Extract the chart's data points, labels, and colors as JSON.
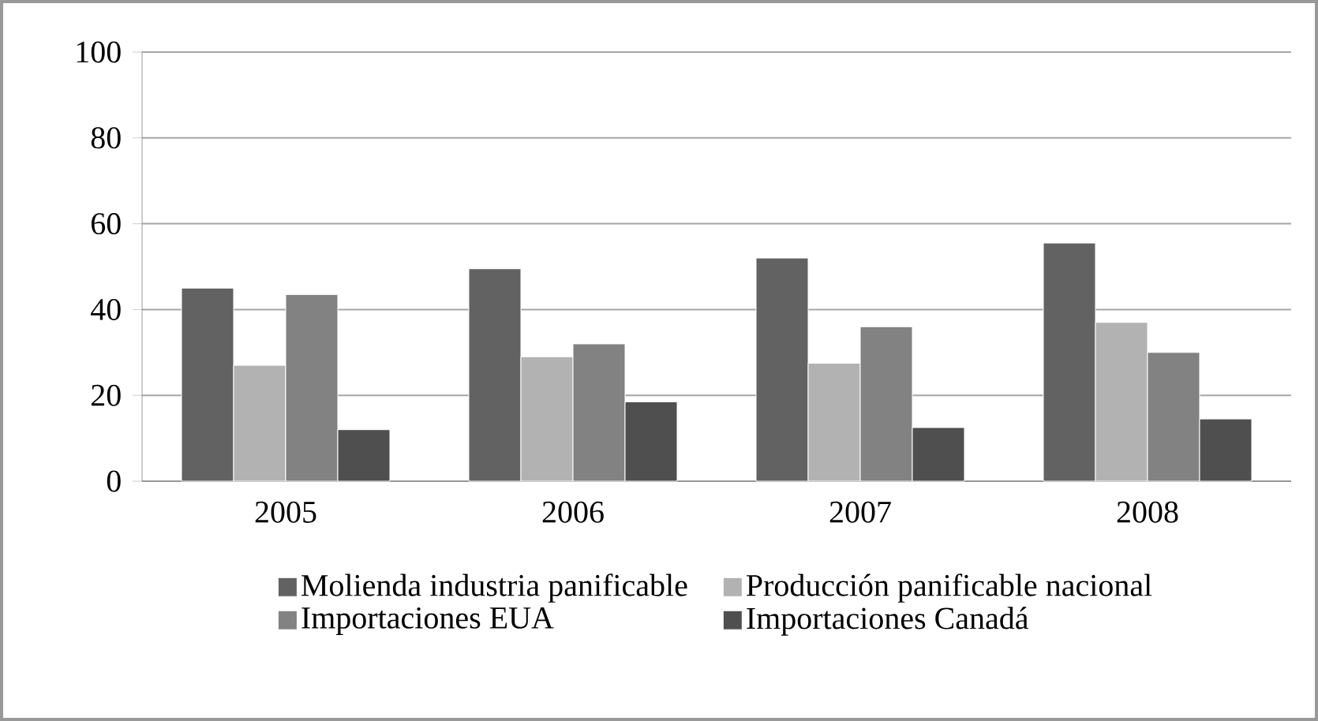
{
  "chart_data": {
    "type": "bar",
    "categories": [
      "2005",
      "2006",
      "2007",
      "2008"
    ],
    "series": [
      {
        "name": "Molienda industria panificable",
        "color": "#626262",
        "values": [
          45,
          49.5,
          52,
          55.5
        ]
      },
      {
        "name": "Producción panificable nacional",
        "color": "#b2b2b2",
        "values": [
          27,
          29,
          27.5,
          37
        ]
      },
      {
        "name": "Importaciones EUA",
        "color": "#828282",
        "values": [
          43.5,
          32,
          36,
          30
        ]
      },
      {
        "name": "Importaciones Canadá",
        "color": "#4f4f4f",
        "values": [
          12,
          18.5,
          12.5,
          14.5
        ]
      }
    ],
    "ylim": [
      0,
      100
    ],
    "yticks": [
      0,
      20,
      40,
      60,
      80,
      100
    ],
    "grid": "y",
    "legend": "bottom"
  }
}
